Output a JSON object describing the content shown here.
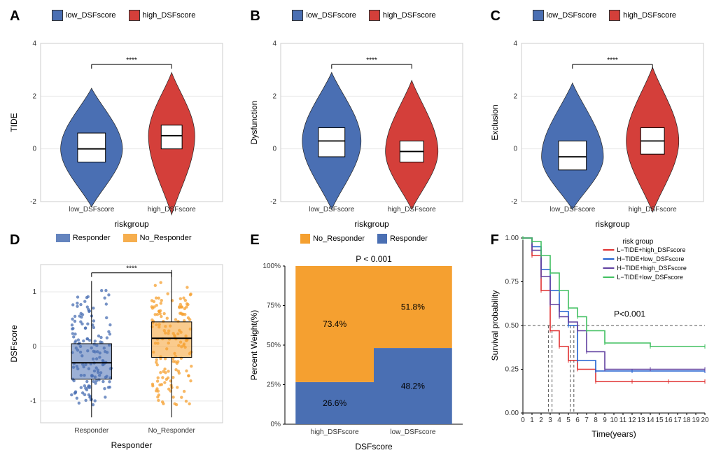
{
  "colors": {
    "low": "#4a6fb3",
    "high": "#d43f3a",
    "responder": "#4a6fb3",
    "no_responder": "#f5a030",
    "grid": "#e8e8e8",
    "axis": "#444444",
    "panel_border": "#cccccc",
    "km_red": "#e03030",
    "km_blue": "#2060d0",
    "km_purple": "#6040a0",
    "km_green": "#40c060",
    "bg": "#ffffff"
  },
  "legend_common": {
    "low_label": "low_DSFscore",
    "high_label": "high_DSFscore"
  },
  "panelA": {
    "label": "A",
    "ylabel": "TIDE",
    "xlabel": "riskgroup",
    "yticks": [
      -2,
      0,
      2,
      4
    ],
    "xticks": [
      "low_DSFscore",
      "high_DSFscore"
    ],
    "sig": "****",
    "low": {
      "median": 0.0,
      "q1": -0.5,
      "q3": 0.6,
      "min": -2.2,
      "max": 2.3,
      "spread": 1.0
    },
    "high": {
      "median": 0.5,
      "q1": 0.0,
      "q3": 0.9,
      "min": -2.5,
      "max": 2.9,
      "spread": 0.75
    }
  },
  "panelB": {
    "label": "B",
    "ylabel": "Dysfunction",
    "xlabel": "riskgroup",
    "yticks": [
      -2,
      0,
      2,
      4
    ],
    "xticks": [
      "low_DSFscore",
      "high_DSFscore"
    ],
    "sig": "****",
    "low": {
      "median": 0.3,
      "q1": -0.3,
      "q3": 0.8,
      "min": -2.3,
      "max": 2.9,
      "spread": 0.95
    },
    "high": {
      "median": -0.1,
      "q1": -0.5,
      "q3": 0.3,
      "min": -2.3,
      "max": 2.6,
      "spread": 0.85
    }
  },
  "panelC": {
    "label": "C",
    "ylabel": "Exclusion",
    "xlabel": "riskgroup",
    "yticks": [
      -2,
      0,
      2,
      4
    ],
    "xticks": [
      "low_DSFscore",
      "high_DSFscore"
    ],
    "sig": "****",
    "low": {
      "median": -0.3,
      "q1": -0.8,
      "q3": 0.3,
      "min": -2.3,
      "max": 2.5,
      "spread": 1.0
    },
    "high": {
      "median": 0.3,
      "q1": -0.2,
      "q3": 0.8,
      "min": -2.4,
      "max": 3.1,
      "spread": 0.85
    }
  },
  "panelD": {
    "label": "D",
    "ylabel": "DSFscore",
    "xlabel": "Responder",
    "legend": [
      "Responder",
      "No_Responder"
    ],
    "yticks": [
      -1,
      0,
      1
    ],
    "xticks": [
      "Responder",
      "No_Responder"
    ],
    "sig": "****",
    "resp": {
      "median": -0.3,
      "q1": -0.6,
      "q3": 0.05,
      "min": -1.3,
      "max": 1.2
    },
    "noresp": {
      "median": 0.15,
      "q1": -0.2,
      "q3": 0.45,
      "min": -1.3,
      "max": 1.4
    },
    "n_points": 150
  },
  "panelE": {
    "label": "E",
    "ylabel": "Percent Weight(%)",
    "xlabel": "DSFscore",
    "pvalue": "P < 0.001",
    "legend": [
      "No_Responder",
      "Responder"
    ],
    "xticks": [
      "high_DSFscore",
      "low_DSFscore"
    ],
    "yticks": [
      0,
      25,
      50,
      75,
      100
    ],
    "high": {
      "no_resp": 73.4,
      "resp": 26.6
    },
    "low": {
      "no_resp": 51.8,
      "resp": 48.2
    }
  },
  "panelF": {
    "label": "F",
    "ylabel": "Survival probability",
    "xlabel": "Time(years)",
    "legend_title": "risk group",
    "legend": [
      {
        "label": "L−TIDE+high_DSFscore",
        "color_key": "km_red"
      },
      {
        "label": "H−TIDE+low_DSFscore",
        "color_key": "km_blue"
      },
      {
        "label": "H−TIDE+high_DSFscore",
        "color_key": "km_purple"
      },
      {
        "label": "L−TIDE+low_DSFscore",
        "color_key": "km_green"
      }
    ],
    "pvalue": "P<0.001",
    "xticks": [
      0,
      1,
      2,
      3,
      4,
      5,
      6,
      7,
      8,
      9,
      10,
      11,
      12,
      13,
      14,
      15,
      16,
      17,
      18,
      19,
      20
    ],
    "yticks": [
      0.0,
      0.25,
      0.5,
      0.75,
      1.0
    ],
    "ref_y": 0.5,
    "ref_x": [
      2.8,
      3.2,
      5.2,
      5.6
    ],
    "curves": {
      "km_red": [
        [
          0,
          1.0
        ],
        [
          1,
          0.9
        ],
        [
          2,
          0.7
        ],
        [
          3,
          0.47
        ],
        [
          4,
          0.38
        ],
        [
          5,
          0.3
        ],
        [
          6,
          0.25
        ],
        [
          8,
          0.18
        ],
        [
          12,
          0.18
        ],
        [
          16,
          0.18
        ],
        [
          20,
          0.18
        ]
      ],
      "km_blue": [
        [
          0,
          1.0
        ],
        [
          1,
          0.95
        ],
        [
          2,
          0.82
        ],
        [
          3,
          0.7
        ],
        [
          4,
          0.58
        ],
        [
          5,
          0.5
        ],
        [
          6,
          0.3
        ],
        [
          8,
          0.24
        ],
        [
          12,
          0.24
        ],
        [
          20,
          0.24
        ]
      ],
      "km_purple": [
        [
          0,
          1.0
        ],
        [
          1,
          0.93
        ],
        [
          2,
          0.78
        ],
        [
          3,
          0.62
        ],
        [
          4,
          0.55
        ],
        [
          5,
          0.52
        ],
        [
          6,
          0.47
        ],
        [
          7,
          0.35
        ],
        [
          9,
          0.25
        ],
        [
          14,
          0.25
        ],
        [
          20,
          0.25
        ]
      ],
      "km_green": [
        [
          0,
          1.0
        ],
        [
          1,
          0.98
        ],
        [
          2,
          0.9
        ],
        [
          3,
          0.8
        ],
        [
          4,
          0.7
        ],
        [
          5,
          0.6
        ],
        [
          6,
          0.55
        ],
        [
          7,
          0.47
        ],
        [
          9,
          0.4
        ],
        [
          14,
          0.38
        ],
        [
          20,
          0.38
        ]
      ]
    }
  }
}
